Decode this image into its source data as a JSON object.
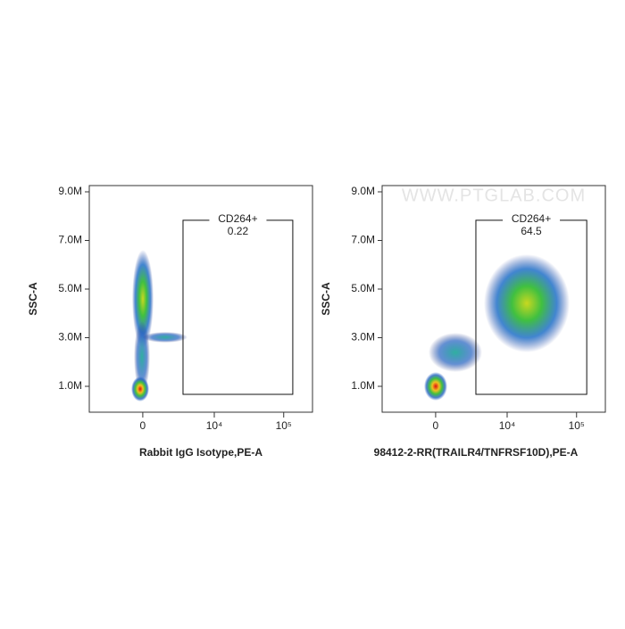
{
  "chart_data": [
    {
      "type": "scatter",
      "y_label": "SSC-A",
      "x_label": "Rabbit IgG Isotype,PE-A",
      "x_scale": "biexponential",
      "xlim": [
        -5400,
        259000
      ],
      "ylim": [
        -64000,
        9257000
      ],
      "xticks": [
        0,
        {
          "value": 10000,
          "label": "10⁴"
        },
        {
          "value": 100000,
          "label": "10⁵"
        }
      ],
      "yticks": [
        {
          "value": 1000000,
          "label": "1.0M"
        },
        {
          "value": 3000000,
          "label": "3.0M"
        },
        {
          "value": 5000000,
          "label": "5.0M"
        },
        {
          "value": 7000000,
          "label": "7.0M"
        },
        {
          "value": 9000000,
          "label": "9.0M"
        }
      ],
      "gate": {
        "name": "CD264+",
        "value": 0.22,
        "xlim": [
          3340,
          135000
        ],
        "ylim": [
          670000,
          7830000
        ]
      }
    },
    {
      "type": "scatter",
      "y_label": "SSC-A",
      "x_label": "98412-2-RR(TRAILR4/TNFRSF10D),PE-A",
      "x_scale": "biexponential",
      "watermark": "WWW.PTGLAB.COM",
      "xlim": [
        -5400,
        259000
      ],
      "ylim": [
        -64000,
        9257000
      ],
      "xticks": [
        0,
        {
          "value": 10000,
          "label": "10⁴"
        },
        {
          "value": 100000,
          "label": "10⁵"
        }
      ],
      "yticks": [
        {
          "value": 1000000,
          "label": "1.0M"
        },
        {
          "value": 3000000,
          "label": "3.0M"
        },
        {
          "value": 5000000,
          "label": "5.0M"
        },
        {
          "value": 7000000,
          "label": "7.0M"
        },
        {
          "value": 9000000,
          "label": "9.0M"
        }
      ],
      "gate": {
        "name": "CD264+",
        "value": 64.5,
        "xlim": [
          3340,
          140000
        ],
        "ylim": [
          670000,
          7830000
        ]
      }
    }
  ]
}
